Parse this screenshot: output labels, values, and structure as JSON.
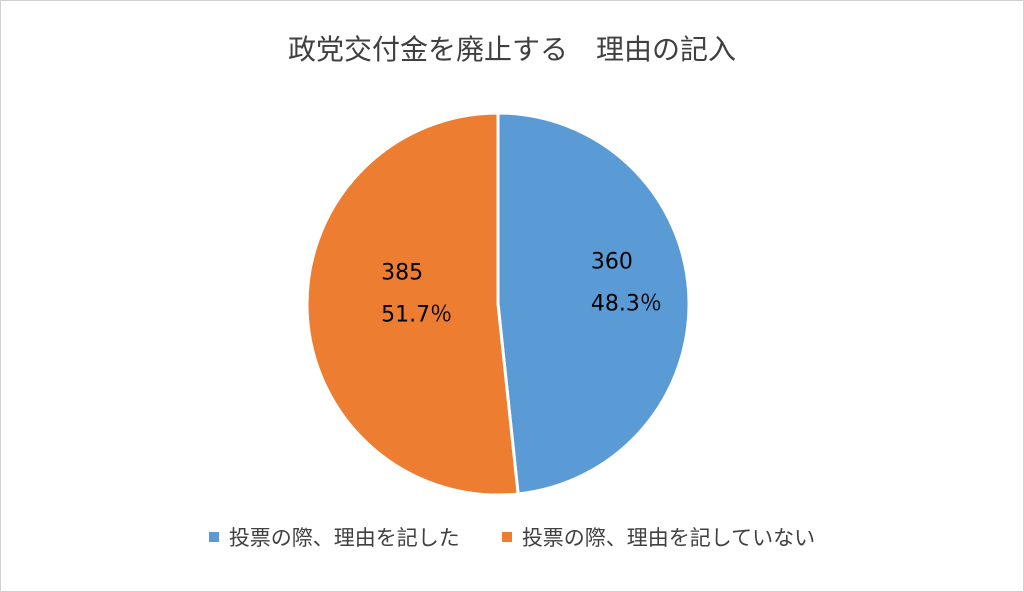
{
  "chart_data": {
    "type": "pie",
    "title": "政党交付金を廃止する　理由の記入",
    "categories": [
      "投票の際、理由を記した",
      "投票の際、理由を記していない"
    ],
    "values": [
      360,
      385
    ],
    "percent_labels": [
      "48.3％",
      "51.7％"
    ],
    "colors": [
      "#5B9BD5",
      "#ED7D31"
    ],
    "legend_position": "bottom"
  }
}
